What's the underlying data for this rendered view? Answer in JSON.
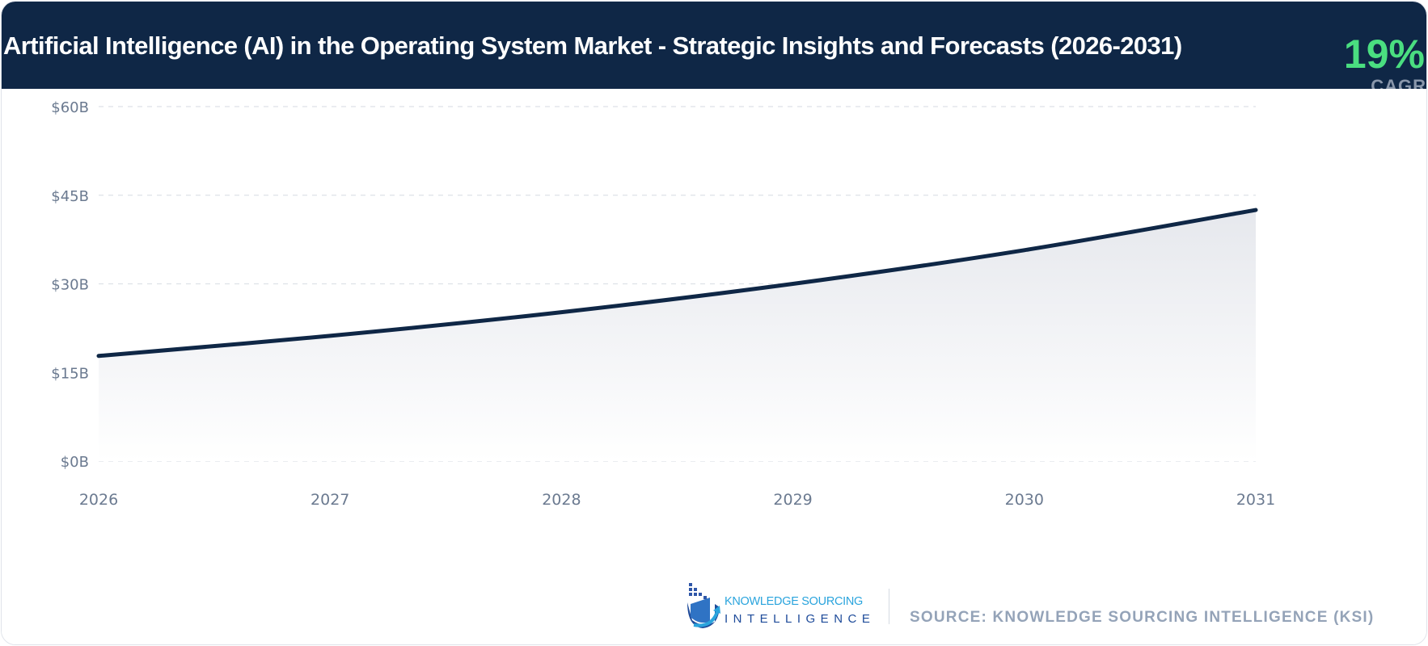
{
  "header": {
    "title": "Artificial Intelligence (AI) in the Operating System Market - Strategic Insights and Forecasts (2026-2031)",
    "cagr_value": "19%",
    "cagr_label": "CAGR"
  },
  "colors": {
    "header_bg": "#0f2746",
    "line": "#0f2746",
    "cagr": "#4ade80",
    "source": "#94a3b8"
  },
  "chart_data": {
    "type": "area",
    "title": "",
    "xlabel": "",
    "ylabel": "",
    "categories": [
      "2026",
      "2027",
      "2028",
      "2029",
      "2030",
      "2031"
    ],
    "values": [
      17.8,
      21.2,
      25.2,
      30.0,
      35.7,
      42.5
    ],
    "unit": "$B",
    "ylim": [
      0,
      60
    ],
    "y_ticks": [
      0,
      15,
      30,
      45,
      60
    ],
    "y_tick_labels": [
      "$0B",
      "$15B",
      "$30B",
      "$45B",
      "$60B"
    ],
    "grid": true,
    "legend": "none"
  },
  "footer": {
    "logo_line1": "KNOWLEDGE SOURCING",
    "logo_line2": "INTELLIGENCE",
    "source": "SOURCE: KNOWLEDGE SOURCING INTELLIGENCE (KSI)"
  }
}
